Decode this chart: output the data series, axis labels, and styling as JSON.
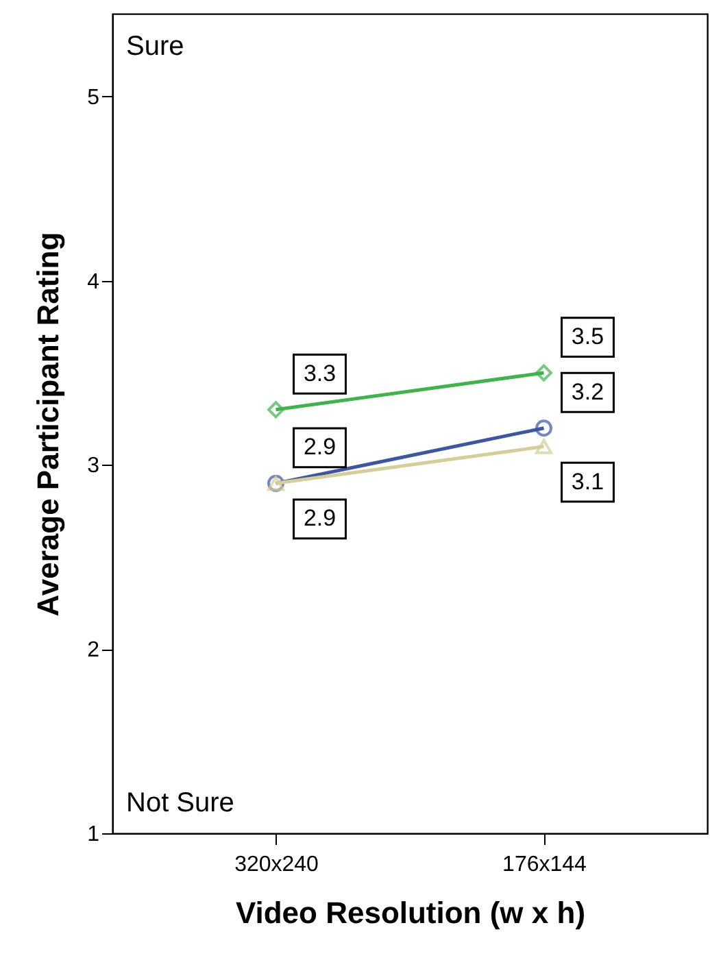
{
  "chart_data": {
    "type": "line",
    "xlabel": "Video Resolution (w x h)",
    "ylabel": "Average Participant Rating",
    "categories": [
      "320x240",
      "176x144"
    ],
    "series": [
      {
        "color": "#3db54a",
        "marker": "diamond",
        "values": [
          3.3,
          3.5
        ]
      },
      {
        "color": "#3c55a5",
        "marker": "circle",
        "values": [
          2.9,
          3.2
        ]
      },
      {
        "color": "#d4cf96",
        "marker": "triangle",
        "values": [
          2.9,
          3.1
        ]
      }
    ],
    "ylim": [
      1,
      5.45
    ],
    "yticks": [
      1,
      2,
      3,
      4,
      5
    ],
    "grid": false,
    "data_labels": true,
    "annotations": [
      "Sure",
      "Not Sure"
    ]
  }
}
